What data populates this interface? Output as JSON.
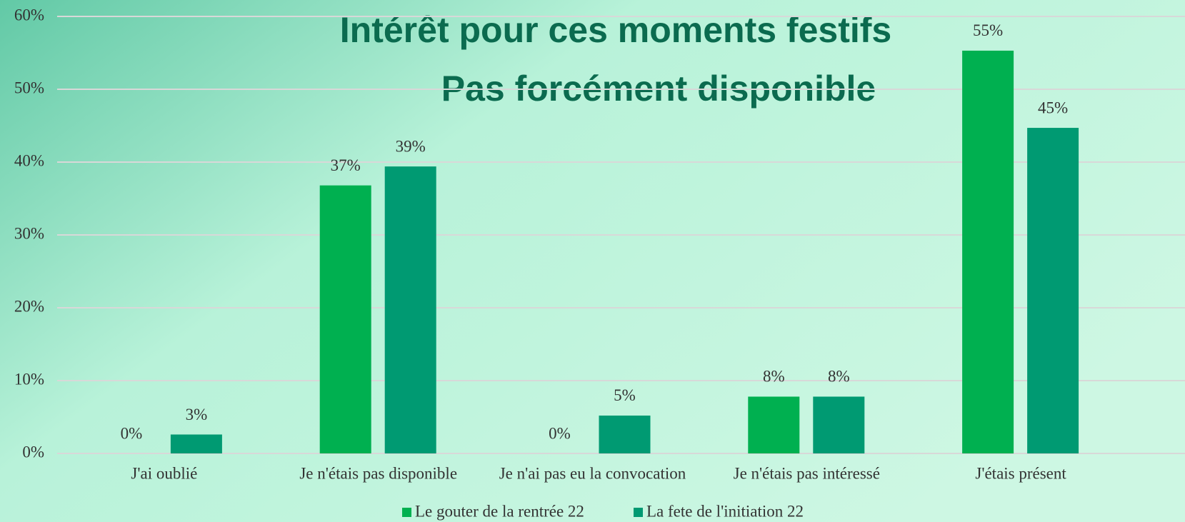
{
  "chart_data": {
    "type": "bar",
    "title": "Intérêt pour ces moments festifs",
    "subtitle": "Pas forcément disponible",
    "categories": [
      "J'ai oublié",
      "Je n'étais pas disponible",
      "Je n'ai pas eu la convocation",
      "Je n'étais pas intéressé",
      "J'étais présent"
    ],
    "series": [
      {
        "name": "Le gouter de la rentrée 22",
        "color": "#00b050",
        "values": [
          0,
          36.8,
          0,
          7.8,
          55.3
        ],
        "value_labels": [
          "0%",
          "37%",
          "0%",
          "8%",
          "55%"
        ]
      },
      {
        "name": "La fete de l'initiation 22",
        "color": "#009a72",
        "values": [
          2.6,
          39.4,
          5.2,
          7.8,
          44.7
        ],
        "value_labels": [
          "3%",
          "39%",
          "5%",
          "8%",
          "45%"
        ]
      }
    ],
    "ylim": [
      0,
      60
    ],
    "yticks": [
      {
        "value": 0,
        "label": "0%"
      },
      {
        "value": 10,
        "label": "10%"
      },
      {
        "value": 20,
        "label": "20%"
      },
      {
        "value": 30,
        "label": "30%"
      },
      {
        "value": 40,
        "label": "40%"
      },
      {
        "value": 50,
        "label": "50%"
      },
      {
        "value": 60,
        "label": "60%"
      }
    ],
    "grid": true,
    "legend": "bottom"
  }
}
